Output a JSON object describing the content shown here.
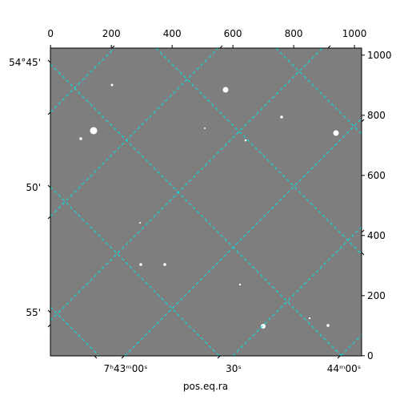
{
  "chart_data": {
    "type": "image",
    "xlabel": "pos.eq.ra",
    "xlim": [
      -0.5,
      1023.5
    ],
    "xticks": [
      0,
      200,
      400,
      600,
      800,
      1000
    ],
    "ylim": [
      -0.5,
      1023.5
    ],
    "yticks": [
      0,
      200,
      400,
      600,
      800,
      1000
    ],
    "ra_tick_labels": [
      "7ʰ43ᵐ00ˢ",
      "30ˢ",
      "44ᵐ00ˢ"
    ],
    "dec_tick_labels": [
      "54°45'",
      "50'",
      "55'"
    ],
    "grid_color": "#00e5e5"
  }
}
